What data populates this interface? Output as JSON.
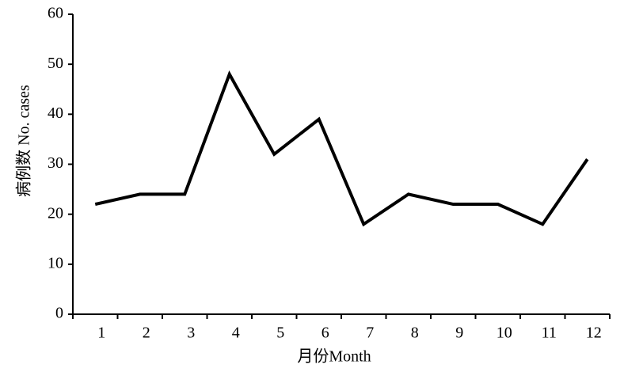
{
  "chart_data": {
    "type": "line",
    "x_label": "月份Month",
    "y_label": "病例数 No. cases",
    "categories": [
      "1",
      "2",
      "3",
      "4",
      "5",
      "6",
      "7",
      "8",
      "9",
      "10",
      "11",
      "12"
    ],
    "values": [
      22,
      24,
      24,
      48,
      32,
      39,
      18,
      24,
      22,
      22,
      18,
      31
    ],
    "color": "#000000",
    "ylim": [
      0,
      60
    ],
    "yticks": [
      0,
      10,
      20,
      30,
      40,
      50,
      60
    ],
    "grid": false
  }
}
